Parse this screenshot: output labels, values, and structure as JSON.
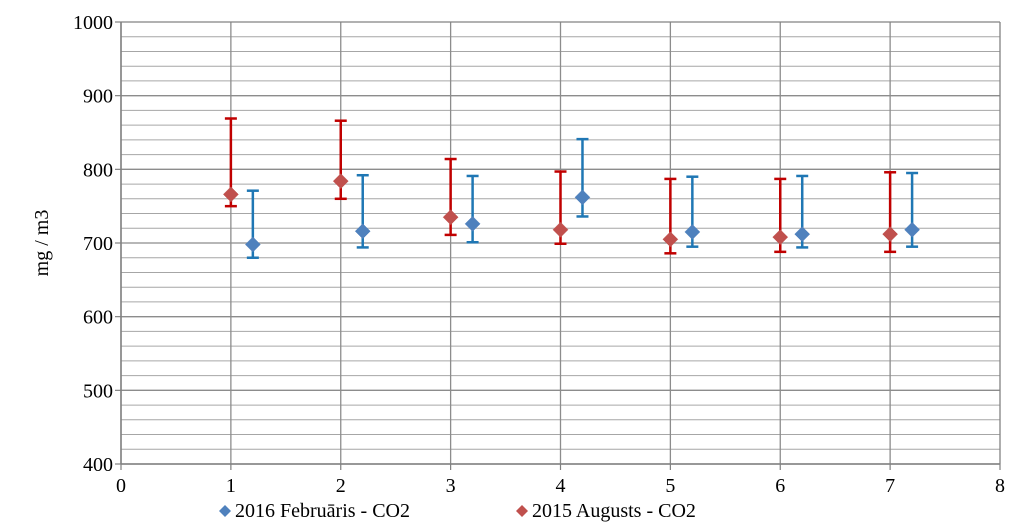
{
  "chart_data": {
    "type": "scatter",
    "title": "",
    "xlabel": "",
    "ylabel": "mg / m3",
    "xlim": [
      0,
      8
    ],
    "ylim": [
      400,
      1000
    ],
    "x_ticks": [
      "0",
      "1",
      "2",
      "3",
      "4",
      "5",
      "6",
      "7",
      "8"
    ],
    "y_ticks": [
      "400",
      "500",
      "600",
      "700",
      "800",
      "900",
      "1000"
    ],
    "y_minor_step": 20,
    "grid": true,
    "legend_position": "bottom",
    "series": [
      {
        "name": "2016 Februāris - CO2",
        "color": "#4f81bd",
        "errorbar_color": "#1f77b4",
        "marker": "diamond",
        "points": [
          {
            "x": 1.2,
            "y": 698,
            "low": 680,
            "high": 771
          },
          {
            "x": 2.2,
            "y": 716,
            "low": 694,
            "high": 792
          },
          {
            "x": 3.2,
            "y": 726,
            "low": 701,
            "high": 791
          },
          {
            "x": 4.2,
            "y": 762,
            "low": 736,
            "high": 841
          },
          {
            "x": 5.2,
            "y": 715,
            "low": 695,
            "high": 790
          },
          {
            "x": 6.2,
            "y": 712,
            "low": 694,
            "high": 791
          },
          {
            "x": 7.2,
            "y": 718,
            "low": 695,
            "high": 795
          }
        ]
      },
      {
        "name": "2015 Augusts  - CO2",
        "color": "#c0504d",
        "errorbar_color": "#c00000",
        "marker": "diamond",
        "points": [
          {
            "x": 1,
            "y": 766,
            "low": 750,
            "high": 869
          },
          {
            "x": 2,
            "y": 784,
            "low": 760,
            "high": 866
          },
          {
            "x": 3,
            "y": 735,
            "low": 711,
            "high": 814
          },
          {
            "x": 4,
            "y": 718,
            "low": 699,
            "high": 797
          },
          {
            "x": 5,
            "y": 705,
            "low": 686,
            "high": 787
          },
          {
            "x": 6,
            "y": 708,
            "low": 688,
            "high": 787
          },
          {
            "x": 7,
            "y": 712,
            "low": 688,
            "high": 796
          }
        ]
      }
    ]
  }
}
